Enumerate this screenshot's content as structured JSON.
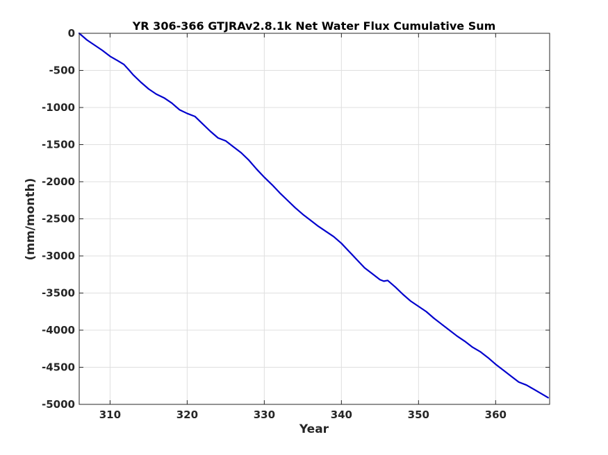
{
  "chart_data": {
    "type": "line",
    "title": "YR 306-366 GTJRAv2.8.1k Net Water Flux Cumulative Sum",
    "xlabel": "Year",
    "ylabel": "(mm/month)",
    "xlim": [
      306,
      367
    ],
    "ylim": [
      -5000,
      0
    ],
    "xticks": [
      310,
      320,
      330,
      340,
      350,
      360
    ],
    "yticks": [
      0,
      -500,
      -1000,
      -1500,
      -2000,
      -2500,
      -3000,
      -3500,
      -4000,
      -4500,
      -5000
    ],
    "grid": true,
    "legend": "none",
    "series": [
      {
        "color": "#0000cd",
        "x": [
          306,
          307,
          308,
          309,
          310,
          311,
          311.8,
          312.5,
          313,
          314,
          315,
          316,
          317,
          318,
          319,
          320,
          321,
          322,
          323,
          324,
          325,
          326,
          327,
          328,
          329,
          330,
          331,
          332,
          333,
          334,
          335,
          336,
          337,
          338,
          339,
          340,
          341,
          342,
          343,
          344,
          345,
          345.5,
          346,
          347,
          348,
          349,
          350,
          351,
          352,
          353,
          354,
          355,
          356,
          357,
          358,
          359,
          360,
          361,
          362,
          363,
          364,
          365,
          366,
          366.8
        ],
        "values": [
          0,
          -90,
          -160,
          -230,
          -310,
          -370,
          -420,
          -500,
          -560,
          -660,
          -750,
          -820,
          -870,
          -940,
          -1030,
          -1080,
          -1120,
          -1220,
          -1320,
          -1410,
          -1450,
          -1530,
          -1610,
          -1710,
          -1830,
          -1940,
          -2040,
          -2150,
          -2250,
          -2350,
          -2440,
          -2520,
          -2600,
          -2670,
          -2740,
          -2830,
          -2940,
          -3050,
          -3160,
          -3240,
          -3320,
          -3340,
          -3330,
          -3420,
          -3520,
          -3610,
          -3680,
          -3750,
          -3840,
          -3920,
          -4000,
          -4080,
          -4150,
          -4230,
          -4290,
          -4370,
          -4460,
          -4540,
          -4620,
          -4700,
          -4740,
          -4800,
          -4860,
          -4910
        ]
      }
    ]
  }
}
